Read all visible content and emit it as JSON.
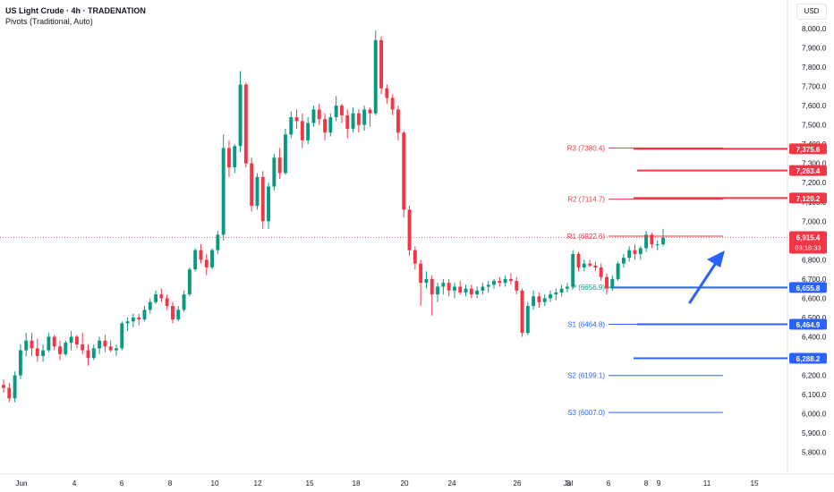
{
  "header": {
    "symbol_line": "US Light Crude · 4h · TRADENATION",
    "indicator_line": "Pivots (Traditional, Auto)",
    "currency": "USD"
  },
  "colors": {
    "up": "#089981",
    "down": "#f23645",
    "red_level": "#f23645",
    "blue_level": "#2962ff",
    "pivot": "#089981",
    "arrow": "#2962ff"
  },
  "chart_data": {
    "type": "candlestick",
    "title": "US Light Crude · 4h · TRADENATION",
    "ylim": [
      5750,
      8050
    ],
    "y_ticks": [
      "5,800.0",
      "5,900.0",
      "6,000.0",
      "6,100.0",
      "6,200.0",
      "6,300.0",
      "6,400.0",
      "6,500.0",
      "6,600.0",
      "6,700.0",
      "6,800.0",
      "6,900.0",
      "7,000.0",
      "7,100.0",
      "7,200.0",
      "7,300.0",
      "7,400.0",
      "7,500.0",
      "7,600.0",
      "7,700.0",
      "7,800.0",
      "7,900.0",
      "8,000.0"
    ],
    "x_ticks": [
      "Jun",
      "4",
      "6",
      "8",
      "10",
      "12",
      "15",
      "18",
      "20",
      "24",
      "26",
      "Jul",
      "3",
      "6",
      "8",
      "9",
      "11",
      "15"
    ],
    "candles": [
      {
        "o": 6150,
        "h": 6180,
        "l": 6110,
        "c": 6135
      },
      {
        "o": 6135,
        "h": 6160,
        "l": 6060,
        "c": 6080
      },
      {
        "o": 6080,
        "h": 6220,
        "l": 6060,
        "c": 6200
      },
      {
        "o": 6200,
        "h": 6360,
        "l": 6180,
        "c": 6330
      },
      {
        "o": 6330,
        "h": 6420,
        "l": 6300,
        "c": 6380
      },
      {
        "o": 6380,
        "h": 6420,
        "l": 6300,
        "c": 6340
      },
      {
        "o": 6340,
        "h": 6390,
        "l": 6270,
        "c": 6300
      },
      {
        "o": 6300,
        "h": 6360,
        "l": 6270,
        "c": 6330
      },
      {
        "o": 6330,
        "h": 6420,
        "l": 6320,
        "c": 6400
      },
      {
        "o": 6400,
        "h": 6410,
        "l": 6330,
        "c": 6350
      },
      {
        "o": 6350,
        "h": 6380,
        "l": 6280,
        "c": 6310
      },
      {
        "o": 6310,
        "h": 6380,
        "l": 6300,
        "c": 6370
      },
      {
        "o": 6370,
        "h": 6430,
        "l": 6330,
        "c": 6400
      },
      {
        "o": 6400,
        "h": 6410,
        "l": 6340,
        "c": 6360
      },
      {
        "o": 6360,
        "h": 6420,
        "l": 6310,
        "c": 6330
      },
      {
        "o": 6330,
        "h": 6360,
        "l": 6250,
        "c": 6290
      },
      {
        "o": 6290,
        "h": 6360,
        "l": 6280,
        "c": 6340
      },
      {
        "o": 6340,
        "h": 6400,
        "l": 6310,
        "c": 6380
      },
      {
        "o": 6380,
        "h": 6410,
        "l": 6320,
        "c": 6350
      },
      {
        "o": 6350,
        "h": 6380,
        "l": 6320,
        "c": 6330
      },
      {
        "o": 6330,
        "h": 6360,
        "l": 6300,
        "c": 6340
      },
      {
        "o": 6340,
        "h": 6480,
        "l": 6330,
        "c": 6470
      },
      {
        "o": 6470,
        "h": 6500,
        "l": 6430,
        "c": 6480
      },
      {
        "o": 6480,
        "h": 6520,
        "l": 6450,
        "c": 6500
      },
      {
        "o": 6500,
        "h": 6520,
        "l": 6460,
        "c": 6490
      },
      {
        "o": 6490,
        "h": 6560,
        "l": 6480,
        "c": 6540
      },
      {
        "o": 6540,
        "h": 6600,
        "l": 6520,
        "c": 6580
      },
      {
        "o": 6580,
        "h": 6640,
        "l": 6570,
        "c": 6620
      },
      {
        "o": 6620,
        "h": 6650,
        "l": 6580,
        "c": 6600
      },
      {
        "o": 6600,
        "h": 6620,
        "l": 6540,
        "c": 6560
      },
      {
        "o": 6560,
        "h": 6580,
        "l": 6470,
        "c": 6490
      },
      {
        "o": 6490,
        "h": 6560,
        "l": 6480,
        "c": 6540
      },
      {
        "o": 6540,
        "h": 6640,
        "l": 6530,
        "c": 6620
      },
      {
        "o": 6620,
        "h": 6760,
        "l": 6610,
        "c": 6750
      },
      {
        "o": 6750,
        "h": 6860,
        "l": 6740,
        "c": 6850
      },
      {
        "o": 6850,
        "h": 6880,
        "l": 6780,
        "c": 6800
      },
      {
        "o": 6800,
        "h": 6830,
        "l": 6720,
        "c": 6760
      },
      {
        "o": 6760,
        "h": 6860,
        "l": 6750,
        "c": 6850
      },
      {
        "o": 6850,
        "h": 6950,
        "l": 6830,
        "c": 6930
      },
      {
        "o": 6930,
        "h": 7450,
        "l": 6900,
        "c": 7380
      },
      {
        "o": 7380,
        "h": 7420,
        "l": 7230,
        "c": 7280
      },
      {
        "o": 7280,
        "h": 7400,
        "l": 7250,
        "c": 7390
      },
      {
        "o": 7390,
        "h": 7780,
        "l": 7360,
        "c": 7710
      },
      {
        "o": 7710,
        "h": 7720,
        "l": 7280,
        "c": 7300
      },
      {
        "o": 7300,
        "h": 7330,
        "l": 7050,
        "c": 7080
      },
      {
        "o": 7080,
        "h": 7250,
        "l": 7060,
        "c": 7230
      },
      {
        "o": 7230,
        "h": 7260,
        "l": 6960,
        "c": 7000
      },
      {
        "o": 7000,
        "h": 7200,
        "l": 6960,
        "c": 7180
      },
      {
        "o": 7180,
        "h": 7350,
        "l": 7160,
        "c": 7330
      },
      {
        "o": 7330,
        "h": 7380,
        "l": 7220,
        "c": 7250
      },
      {
        "o": 7250,
        "h": 7480,
        "l": 7240,
        "c": 7450
      },
      {
        "o": 7450,
        "h": 7570,
        "l": 7430,
        "c": 7540
      },
      {
        "o": 7540,
        "h": 7580,
        "l": 7480,
        "c": 7520
      },
      {
        "o": 7520,
        "h": 7560,
        "l": 7380,
        "c": 7420
      },
      {
        "o": 7420,
        "h": 7540,
        "l": 7400,
        "c": 7510
      },
      {
        "o": 7510,
        "h": 7600,
        "l": 7490,
        "c": 7580
      },
      {
        "o": 7580,
        "h": 7610,
        "l": 7500,
        "c": 7530
      },
      {
        "o": 7530,
        "h": 7560,
        "l": 7420,
        "c": 7460
      },
      {
        "o": 7460,
        "h": 7560,
        "l": 7440,
        "c": 7540
      },
      {
        "o": 7540,
        "h": 7650,
        "l": 7520,
        "c": 7600
      },
      {
        "o": 7600,
        "h": 7610,
        "l": 7510,
        "c": 7550
      },
      {
        "o": 7550,
        "h": 7580,
        "l": 7430,
        "c": 7480
      },
      {
        "o": 7480,
        "h": 7590,
        "l": 7460,
        "c": 7560
      },
      {
        "o": 7560,
        "h": 7580,
        "l": 7460,
        "c": 7500
      },
      {
        "o": 7500,
        "h": 7600,
        "l": 7470,
        "c": 7580
      },
      {
        "o": 7580,
        "h": 7590,
        "l": 7490,
        "c": 7560
      },
      {
        "o": 7560,
        "h": 7990,
        "l": 7550,
        "c": 7940
      },
      {
        "o": 7940,
        "h": 7960,
        "l": 7660,
        "c": 7690
      },
      {
        "o": 7690,
        "h": 7710,
        "l": 7610,
        "c": 7640
      },
      {
        "o": 7640,
        "h": 7660,
        "l": 7550,
        "c": 7580
      },
      {
        "o": 7580,
        "h": 7600,
        "l": 7420,
        "c": 7460
      },
      {
        "o": 7460,
        "h": 7470,
        "l": 7020,
        "c": 7060
      },
      {
        "o": 7060,
        "h": 7080,
        "l": 6820,
        "c": 6850
      },
      {
        "o": 6850,
        "h": 6870,
        "l": 6750,
        "c": 6780
      },
      {
        "o": 6780,
        "h": 6800,
        "l": 6560,
        "c": 6680
      },
      {
        "o": 6680,
        "h": 6740,
        "l": 6650,
        "c": 6700
      },
      {
        "o": 6700,
        "h": 6720,
        "l": 6510,
        "c": 6620
      },
      {
        "o": 6620,
        "h": 6680,
        "l": 6580,
        "c": 6660
      },
      {
        "o": 6660,
        "h": 6700,
        "l": 6620,
        "c": 6680
      },
      {
        "o": 6680,
        "h": 6700,
        "l": 6610,
        "c": 6640
      },
      {
        "o": 6640,
        "h": 6680,
        "l": 6600,
        "c": 6660
      },
      {
        "o": 6660,
        "h": 6690,
        "l": 6620,
        "c": 6630
      },
      {
        "o": 6630,
        "h": 6670,
        "l": 6610,
        "c": 6650
      },
      {
        "o": 6650,
        "h": 6670,
        "l": 6600,
        "c": 6620
      },
      {
        "o": 6620,
        "h": 6660,
        "l": 6600,
        "c": 6640
      },
      {
        "o": 6640,
        "h": 6680,
        "l": 6620,
        "c": 6660
      },
      {
        "o": 6660,
        "h": 6690,
        "l": 6630,
        "c": 6670
      },
      {
        "o": 6670,
        "h": 6700,
        "l": 6650,
        "c": 6690
      },
      {
        "o": 6690,
        "h": 6710,
        "l": 6660,
        "c": 6680
      },
      {
        "o": 6680,
        "h": 6720,
        "l": 6660,
        "c": 6700
      },
      {
        "o": 6700,
        "h": 6730,
        "l": 6670,
        "c": 6690
      },
      {
        "o": 6690,
        "h": 6710,
        "l": 6620,
        "c": 6640
      },
      {
        "o": 6640,
        "h": 6650,
        "l": 6400,
        "c": 6420
      },
      {
        "o": 6420,
        "h": 6580,
        "l": 6410,
        "c": 6560
      },
      {
        "o": 6560,
        "h": 6640,
        "l": 6540,
        "c": 6610
      },
      {
        "o": 6610,
        "h": 6630,
        "l": 6550,
        "c": 6580
      },
      {
        "o": 6580,
        "h": 6620,
        "l": 6560,
        "c": 6600
      },
      {
        "o": 6600,
        "h": 6640,
        "l": 6580,
        "c": 6620
      },
      {
        "o": 6620,
        "h": 6650,
        "l": 6590,
        "c": 6630
      },
      {
        "o": 6630,
        "h": 6670,
        "l": 6610,
        "c": 6650
      },
      {
        "o": 6650,
        "h": 6680,
        "l": 6630,
        "c": 6660
      },
      {
        "o": 6660,
        "h": 6850,
        "l": 6650,
        "c": 6830
      },
      {
        "o": 6830,
        "h": 6840,
        "l": 6740,
        "c": 6760
      },
      {
        "o": 6760,
        "h": 6800,
        "l": 6740,
        "c": 6780
      },
      {
        "o": 6780,
        "h": 6800,
        "l": 6760,
        "c": 6770
      },
      {
        "o": 6770,
        "h": 6790,
        "l": 6740,
        "c": 6760
      },
      {
        "o": 6760,
        "h": 6780,
        "l": 6690,
        "c": 6710
      },
      {
        "o": 6710,
        "h": 6730,
        "l": 6620,
        "c": 6650
      },
      {
        "o": 6650,
        "h": 6720,
        "l": 6640,
        "c": 6700
      },
      {
        "o": 6700,
        "h": 6790,
        "l": 6690,
        "c": 6780
      },
      {
        "o": 6780,
        "h": 6830,
        "l": 6760,
        "c": 6810
      },
      {
        "o": 6810,
        "h": 6870,
        "l": 6790,
        "c": 6850
      },
      {
        "o": 6850,
        "h": 6880,
        "l": 6800,
        "c": 6830
      },
      {
        "o": 6830,
        "h": 6870,
        "l": 6800,
        "c": 6860
      },
      {
        "o": 6860,
        "h": 6950,
        "l": 6840,
        "c": 6930
      },
      {
        "o": 6930,
        "h": 6940,
        "l": 6860,
        "c": 6880
      },
      {
        "o": 6880,
        "h": 6900,
        "l": 6850,
        "c": 6880
      },
      {
        "o": 6880,
        "h": 6960,
        "l": 6870,
        "c": 6915
      }
    ],
    "pivot_levels": [
      {
        "label": "R3 (7380.4)",
        "value": 7380.4,
        "kind": "red"
      },
      {
        "label": "R2 (7114.7)",
        "value": 7114.7,
        "kind": "red"
      },
      {
        "label": "R1 (6922.6)",
        "value": 6922.6,
        "kind": "red"
      },
      {
        "label": "P (6656.9)",
        "value": 6656.9,
        "kind": "pivot"
      },
      {
        "label": "S1 (6464.8)",
        "value": 6464.8,
        "kind": "blue"
      },
      {
        "label": "S2 (6199.1)",
        "value": 6199.1,
        "kind": "blue"
      },
      {
        "label": "S3 (6007.0)",
        "value": 6007.0,
        "kind": "blue"
      }
    ],
    "horizontal_rays": [
      {
        "value": 7375.6,
        "label": "7,375.6",
        "color": "red"
      },
      {
        "value": 7263.4,
        "label": "7,263.4",
        "color": "red"
      },
      {
        "value": 7120.2,
        "label": "7,120.2",
        "color": "red"
      },
      {
        "value": 6655.8,
        "label": "6,655.8",
        "color": "blue"
      },
      {
        "value": 6464.9,
        "label": "6,464.9",
        "color": "blue"
      },
      {
        "value": 6288.2,
        "label": "6,288.2",
        "color": "blue"
      }
    ],
    "current_price": {
      "value": 6915.4,
      "label": "6,915.4",
      "countdown": "03:18:33"
    }
  }
}
